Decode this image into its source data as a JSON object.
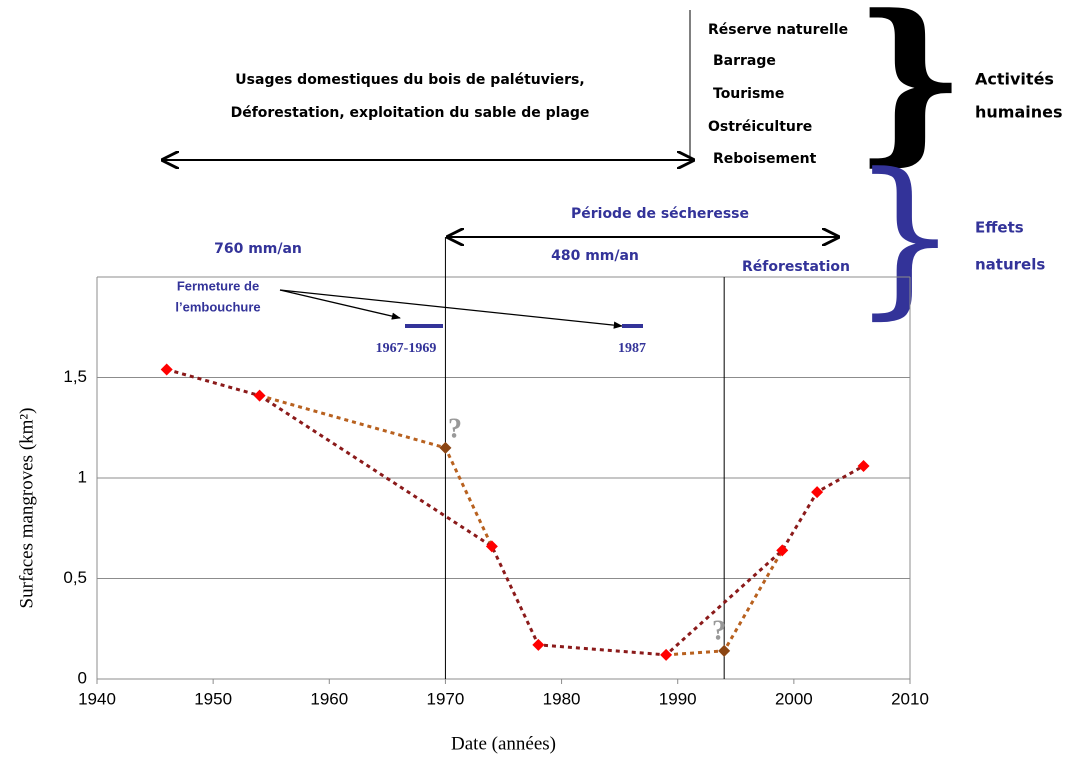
{
  "chart_data": {
    "type": "line",
    "x_label": "Date (années)",
    "y_label": "Surfaces mangroves (km²)",
    "xlim": [
      1940,
      2010
    ],
    "xticks": [
      1940,
      1950,
      1960,
      1970,
      1980,
      1990,
      2000,
      2010
    ],
    "ylim": [
      0,
      2
    ],
    "yticks": [
      0,
      {
        "value": 0.5,
        "label": "0,5"
      },
      1,
      {
        "value": 1.5,
        "label": "1,5"
      }
    ],
    "grid": true,
    "series": [
      {
        "color": "#ff0000",
        "line_color": "#8b1a1a",
        "x": [
          1946,
          1954,
          1974,
          1978,
          1989,
          1999,
          2002,
          2006
        ],
        "values": [
          1.54,
          1.41,
          0.66,
          0.17,
          0.12,
          0.64,
          0.93,
          1.06
        ]
      },
      {
        "color": "#8b4513",
        "line_color": "#b8611f",
        "x": [
          1970,
          1994
        ],
        "values": [
          1.15,
          0.14
        ]
      }
    ],
    "vertical_lines": [
      1970,
      1994
    ],
    "annotations": [
      "Usages domestiques du bois de palétuviers,",
      "Déforestation, exploitation du sable de plage",
      "Réserve naturelle",
      "Barrage",
      "Tourisme",
      "Ostréiculture",
      "Reboisement",
      "Activités",
      "humaines",
      "Effets",
      "naturels",
      "Période de sécheresse",
      "760 mm/an",
      "480 mm/an",
      "Réforestation",
      "Fermeture de",
      "l’embouchure",
      "1967-1969",
      "1987",
      "?",
      "?"
    ]
  }
}
